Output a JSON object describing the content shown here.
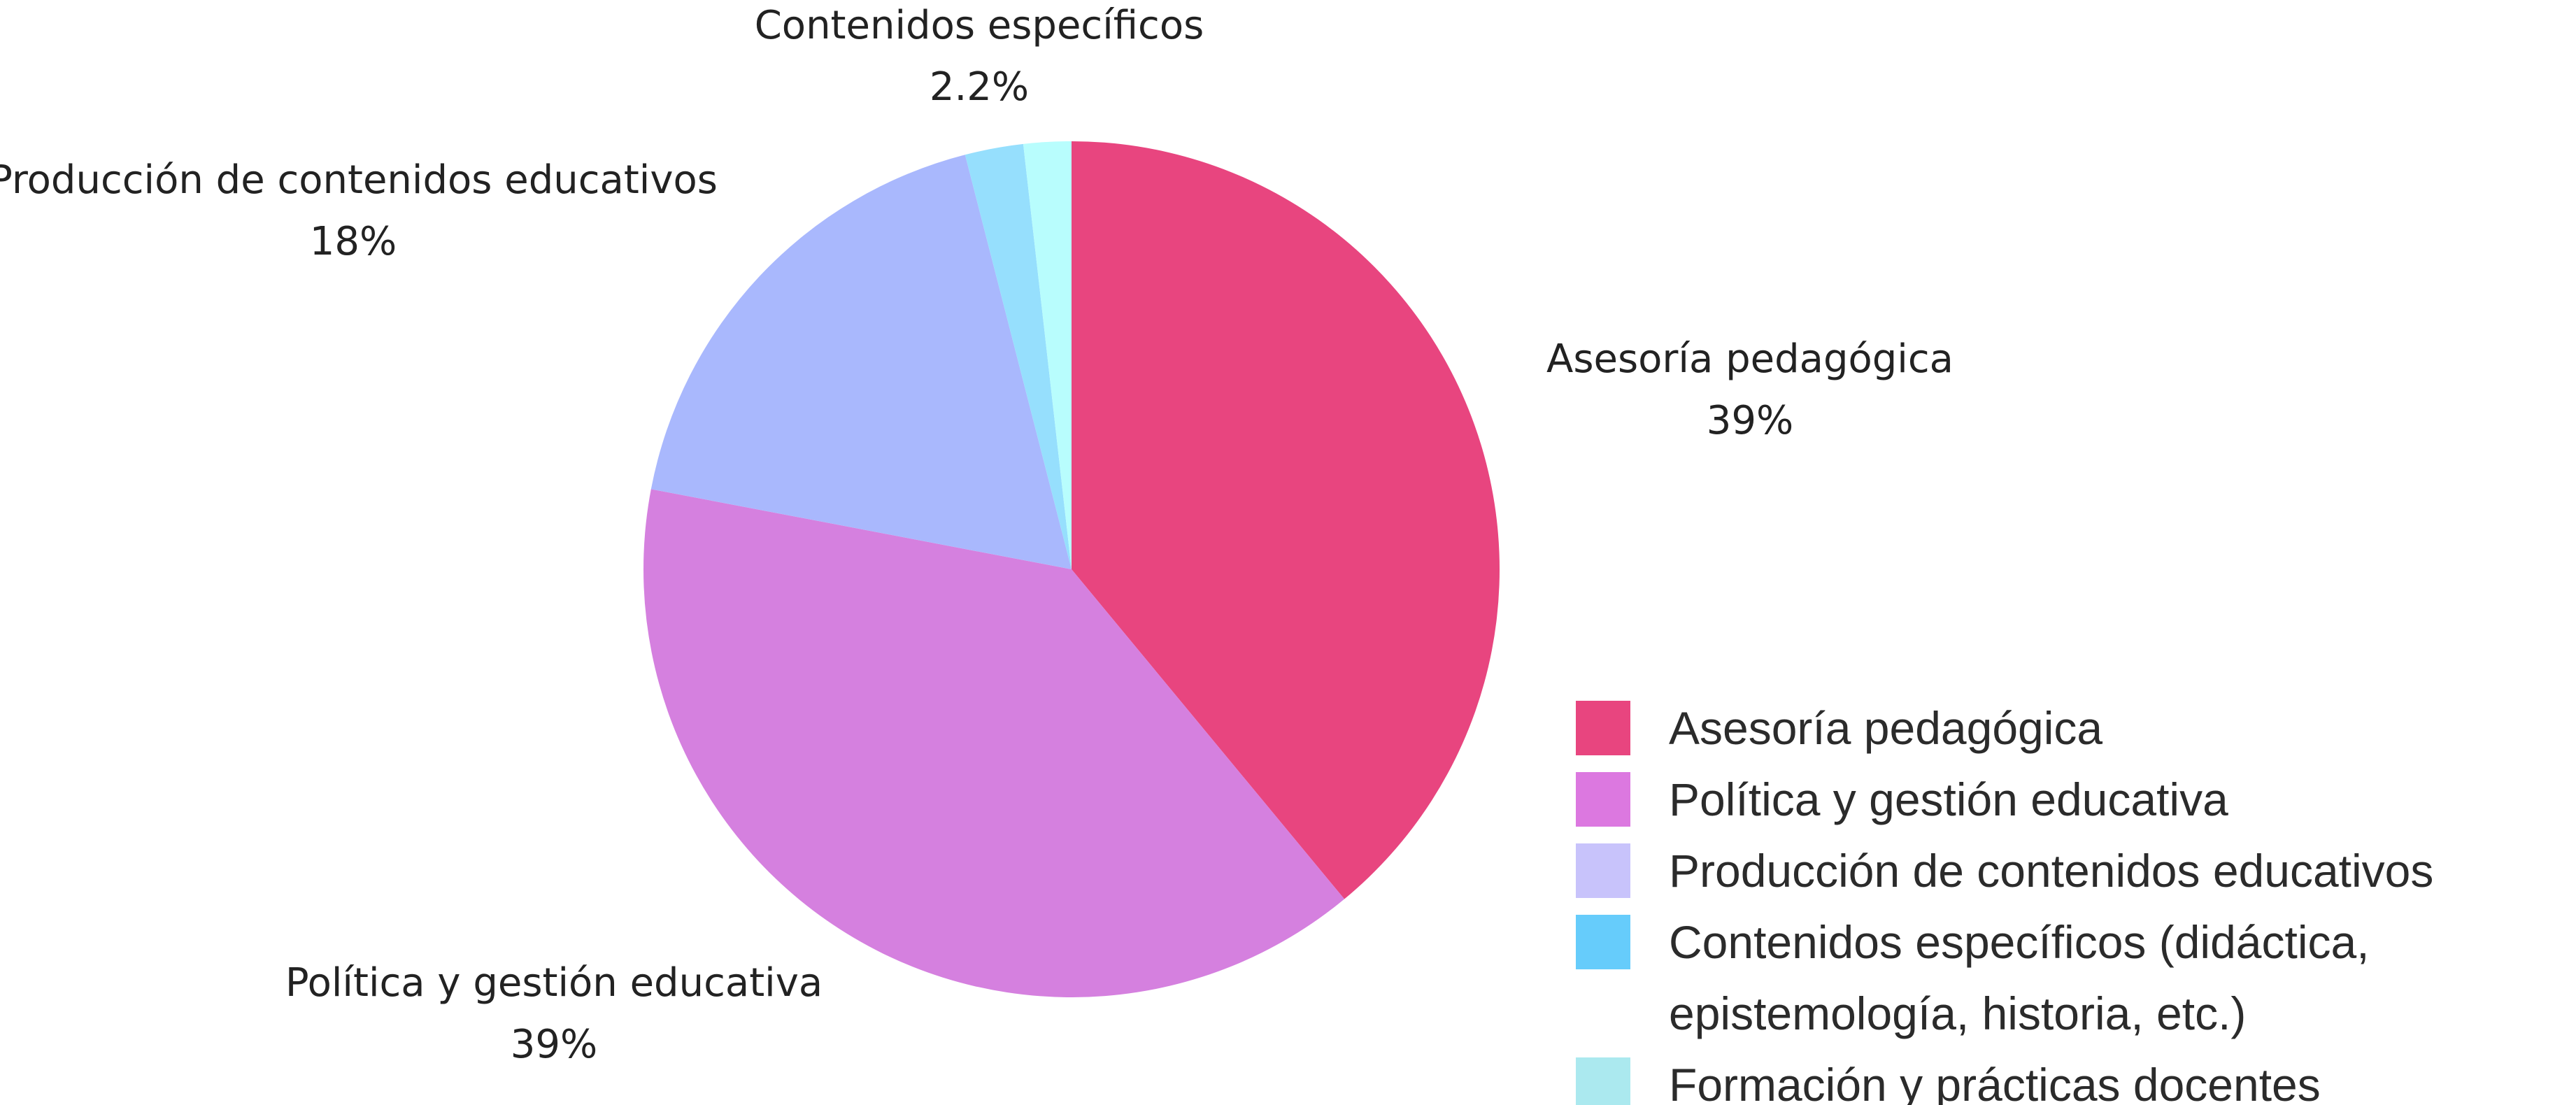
{
  "chart_data": {
    "type": "pie",
    "categories": [
      "Asesoría pedagógica",
      "Política y gestión educativa",
      "Producción de contenidos educativos",
      "Contenidos específicos (didáctica,\nepistemología, historia, etc.)",
      "Formación y prácticas docentes"
    ],
    "labels": [
      "Asesoría pedagógica",
      "Política y gestión educativa",
      "Producción de contenidos educativos",
      "Contenidos específicos",
      null
    ],
    "values": [
      39,
      39,
      18,
      2.2,
      1.8
    ],
    "value_labels": [
      "39%",
      "39%",
      "18%",
      "2.2%",
      null
    ],
    "colors": [
      "#e8457f",
      "#d580df",
      "#a9b8fd",
      "#96dffd",
      "#b8fdfd"
    ],
    "legend_colors": [
      "#e8457f",
      "#dc78e0",
      "#c8c3fb",
      "#66ccfb",
      "#abe9ef"
    ]
  }
}
